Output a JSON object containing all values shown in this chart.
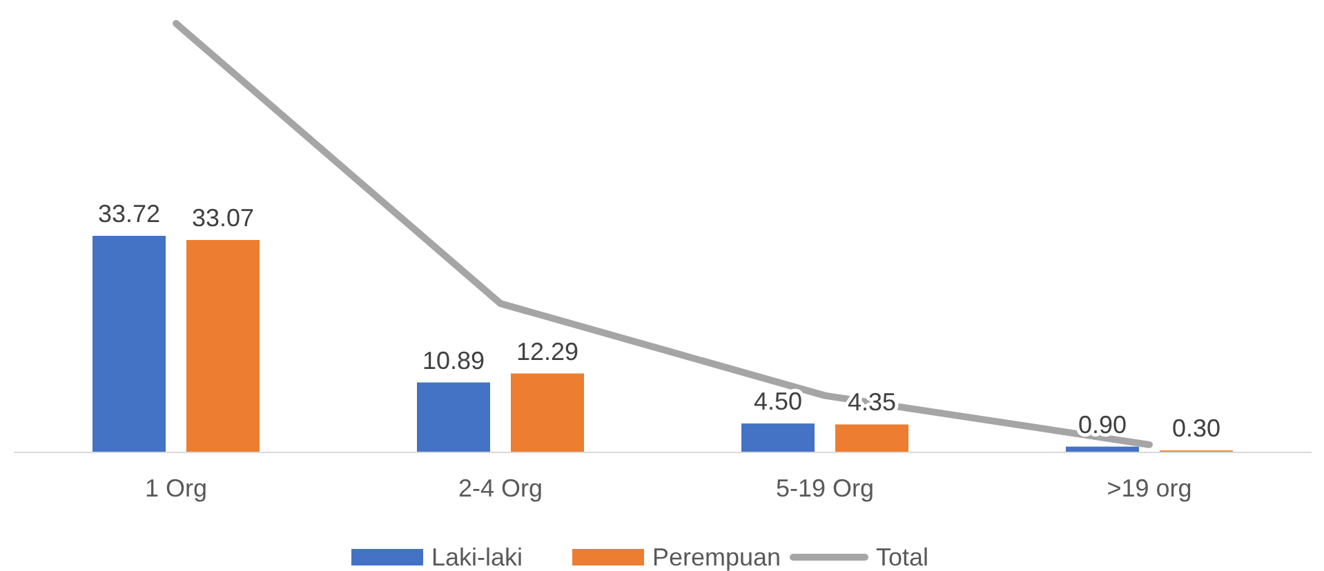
{
  "chart_data": {
    "type": "bar",
    "categories": [
      "1 Org",
      "2-4 Org",
      "5-19 Org",
      ">19 org"
    ],
    "series": [
      {
        "name": "Laki-laki",
        "color": "#4472c4",
        "values": [
          33.72,
          10.89,
          4.5,
          0.9
        ],
        "value_labels": [
          "33.72",
          "10.89",
          "4.50",
          "0.90"
        ]
      },
      {
        "name": "Perempuan",
        "color": "#ed7d31",
        "values": [
          33.07,
          12.29,
          4.35,
          0.3
        ],
        "value_labels": [
          "33.07",
          "12.29",
          "4.35",
          "0.30"
        ]
      },
      {
        "name": "Total",
        "type": "line",
        "color": "#a5a5a5",
        "values": [
          66.79,
          23.18,
          8.85,
          1.2
        ]
      }
    ],
    "legend": "bottom"
  }
}
